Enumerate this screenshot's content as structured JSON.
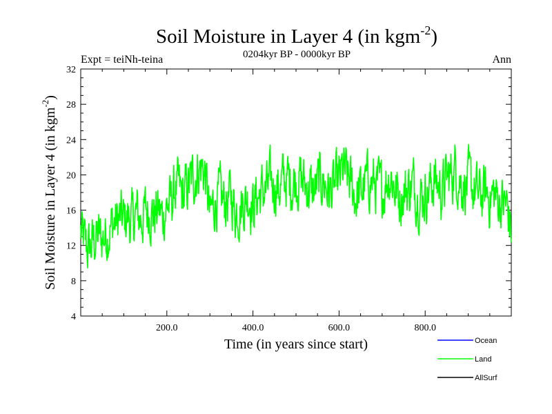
{
  "chart_data": {
    "type": "line",
    "title": "Soil Moisture in Layer 4 (in kgm",
    "title_superscript": "-2",
    "title_close": ")",
    "subtitle": "0204kyr BP - 0000kyr BP",
    "left_label": "Expt = teiNh-teina",
    "right_label": "Ann",
    "xlabel": "Time (in years since start)",
    "ylabel": "Soil Moisture in Layer 4 (in kgm",
    "ylabel_superscript": "-2",
    "ylabel_close": ")",
    "xlim": [
      0,
      1000
    ],
    "ylim": [
      4,
      32
    ],
    "x_ticks": [
      200,
      400,
      600,
      800
    ],
    "x_tick_labels": [
      "200.0",
      "400.0",
      "600.0",
      "800.0"
    ],
    "y_ticks": [
      4,
      8,
      12,
      16,
      20,
      24,
      28,
      32
    ],
    "y_tick_labels": [
      "4",
      "8",
      "12",
      "16",
      "20",
      "24",
      "28",
      "32"
    ],
    "legend": {
      "placement": "bottom-right",
      "entries": [
        {
          "name": "Ocean",
          "color": "#0000ff"
        },
        {
          "name": "Land",
          "color": "#00ff00"
        },
        {
          "name": "AllSurf",
          "color": "#000000"
        }
      ]
    },
    "series": [
      {
        "name": "Land",
        "color": "#00ff00",
        "x": [
          0,
          10,
          20,
          30,
          40,
          50,
          60,
          70,
          80,
          90,
          100,
          110,
          120,
          130,
          140,
          150,
          160,
          170,
          180,
          190,
          200,
          210,
          220,
          230,
          240,
          250,
          260,
          270,
          280,
          290,
          300,
          310,
          320,
          330,
          340,
          350,
          360,
          370,
          380,
          390,
          400,
          410,
          420,
          430,
          440,
          450,
          460,
          470,
          480,
          490,
          500,
          510,
          520,
          530,
          540,
          550,
          560,
          570,
          580,
          590,
          600,
          610,
          620,
          630,
          640,
          650,
          660,
          670,
          680,
          690,
          700,
          710,
          720,
          730,
          740,
          750,
          760,
          770,
          780,
          790,
          800,
          810,
          820,
          830,
          840,
          850,
          860,
          870,
          880,
          890,
          900,
          910,
          920,
          930,
          940,
          950,
          960,
          970,
          980,
          990,
          1000
        ],
        "values": [
          13.5,
          12.0,
          11.5,
          12.5,
          13.0,
          12.8,
          13.5,
          14.2,
          14.5,
          15.0,
          14.8,
          15.2,
          14.6,
          15.5,
          15.0,
          15.8,
          16.2,
          15.5,
          16.0,
          15.2,
          16.5,
          16.8,
          18.5,
          18.0,
          17.5,
          18.8,
          19.5,
          20.5,
          21.0,
          20.0,
          15.0,
          17.0,
          17.5,
          16.8,
          17.2,
          17.5,
          16.0,
          16.5,
          17.0,
          17.8,
          16.5,
          17.5,
          18.0,
          18.2,
          18.8,
          19.0,
          18.5,
          19.2,
          19.5,
          19.0,
          19.8,
          19.5,
          19.0,
          18.5,
          18.0,
          18.8,
          19.5,
          18.8,
          18.0,
          18.5,
          19.2,
          20.5,
          19.5,
          18.5,
          17.5,
          18.0,
          18.8,
          19.5,
          19.0,
          18.5,
          18.0,
          19.5,
          20.2,
          18.5,
          17.5,
          18.0,
          18.5,
          19.0,
          18.2,
          17.5,
          18.0,
          18.5,
          19.5,
          18.8,
          18.2,
          19.5,
          20.0,
          20.8,
          19.5,
          18.8,
          19.0,
          18.5,
          17.8,
          17.5,
          18.0,
          17.5,
          17.8,
          17.2,
          16.8,
          16.5,
          13.5
        ]
      },
      {
        "name": "Ocean",
        "color": "#0000ff",
        "x": [],
        "values": []
      },
      {
        "name": "AllSurf",
        "color": "#000000",
        "x": [],
        "values": []
      }
    ]
  }
}
